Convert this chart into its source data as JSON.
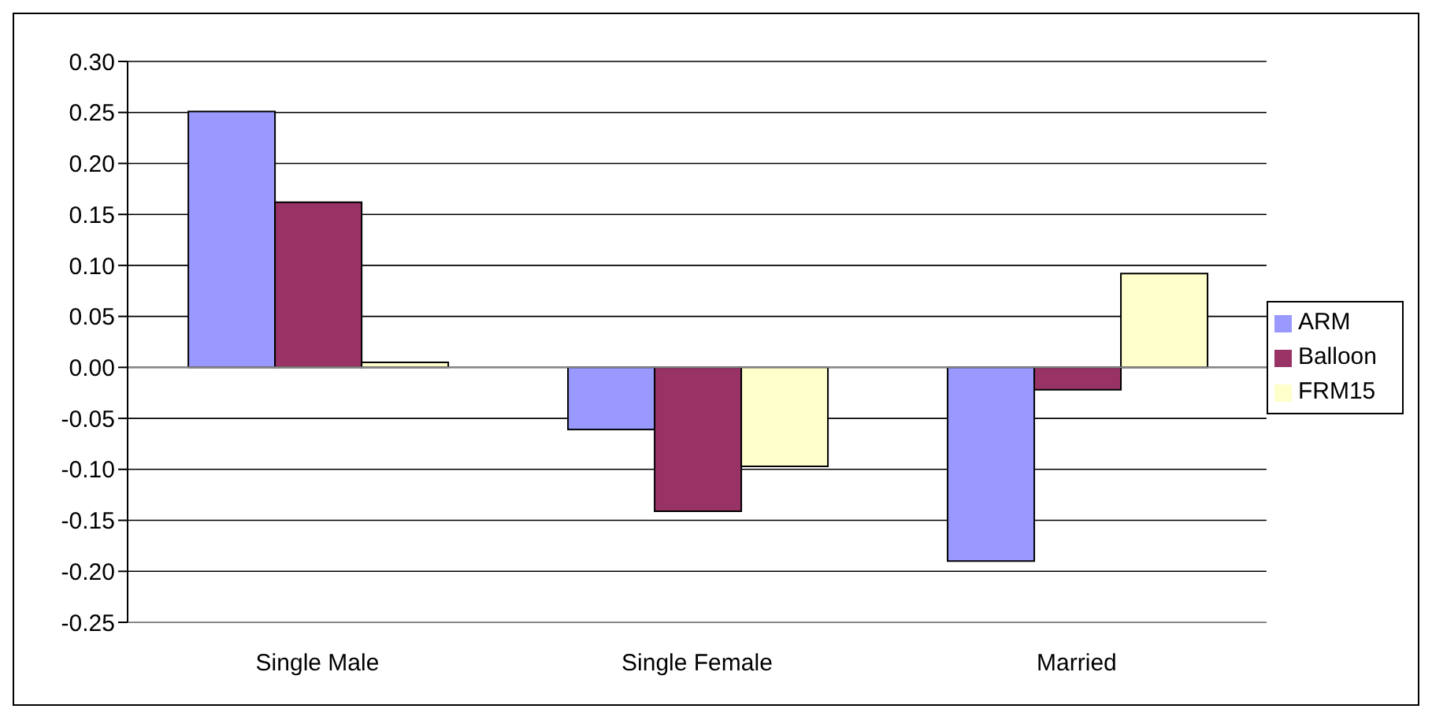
{
  "chart_data": {
    "type": "bar",
    "categories": [
      "Single Male",
      "Single Female",
      "Married"
    ],
    "series": [
      {
        "name": "ARM",
        "color": "#9999ff",
        "values": [
          0.251,
          -0.061,
          -0.19
        ]
      },
      {
        "name": "Balloon",
        "color": "#993366",
        "values": [
          0.162,
          -0.141,
          -0.022
        ]
      },
      {
        "name": "FRM15",
        "color": "#ffffcc",
        "values": [
          0.005,
          -0.097,
          0.092
        ]
      }
    ],
    "ylim": [
      -0.25,
      0.3
    ],
    "yticks": [
      {
        "value": -0.25,
        "label": "-0.25"
      },
      {
        "value": -0.2,
        "label": "-0.20"
      },
      {
        "value": -0.15,
        "label": "-0.15"
      },
      {
        "value": -0.1,
        "label": "-0.10"
      },
      {
        "value": -0.05,
        "label": "-0.05"
      },
      {
        "value": 0,
        "label": "0.00"
      },
      {
        "value": 0.05,
        "label": "0.05"
      },
      {
        "value": 0.1,
        "label": "0.10"
      },
      {
        "value": 0.15,
        "label": "0.15"
      },
      {
        "value": 0.2,
        "label": "0.20"
      },
      {
        "value": 0.25,
        "label": "0.25"
      },
      {
        "value": 0.3,
        "label": "0.30"
      }
    ],
    "grid": "y",
    "legend": "right"
  }
}
